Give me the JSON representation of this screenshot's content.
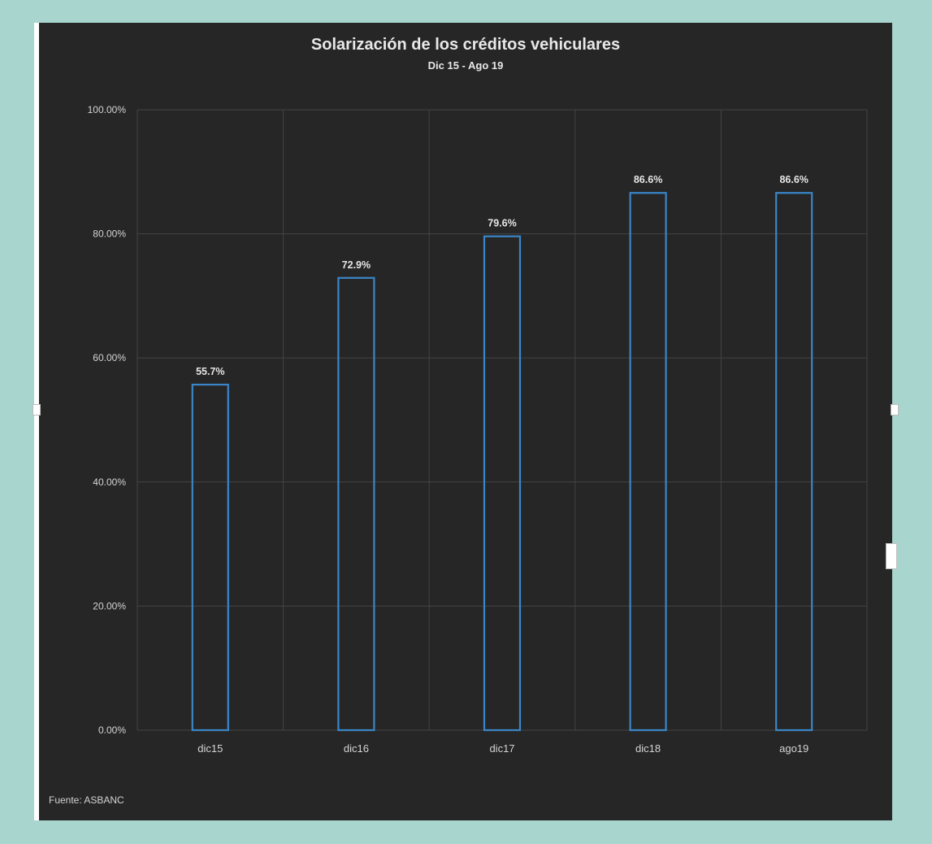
{
  "chart_data": {
    "type": "bar",
    "title": "Solarización de los créditos vehiculares",
    "subtitle": "Dic 15 - Ago 19",
    "categories": [
      "dic15",
      "dic16",
      "dic17",
      "dic18",
      "ago19"
    ],
    "values": [
      55.7,
      72.9,
      79.6,
      86.6,
      86.6
    ],
    "data_labels": [
      "55.7%",
      "72.9%",
      "79.6%",
      "86.6%",
      "86.6%"
    ],
    "ylim": [
      0,
      100
    ],
    "yticks": [
      "0.00%",
      "20.00%",
      "40.00%",
      "60.00%",
      "80.00%",
      "100.00%"
    ],
    "grid": true,
    "legend": "none",
    "bar_style": "outline",
    "colors": {
      "bar_outline": "#3a86c8",
      "background": "#262626",
      "grid": "#444444",
      "page": "#a9d5cf"
    },
    "source": "Fuente: ASBANC"
  }
}
